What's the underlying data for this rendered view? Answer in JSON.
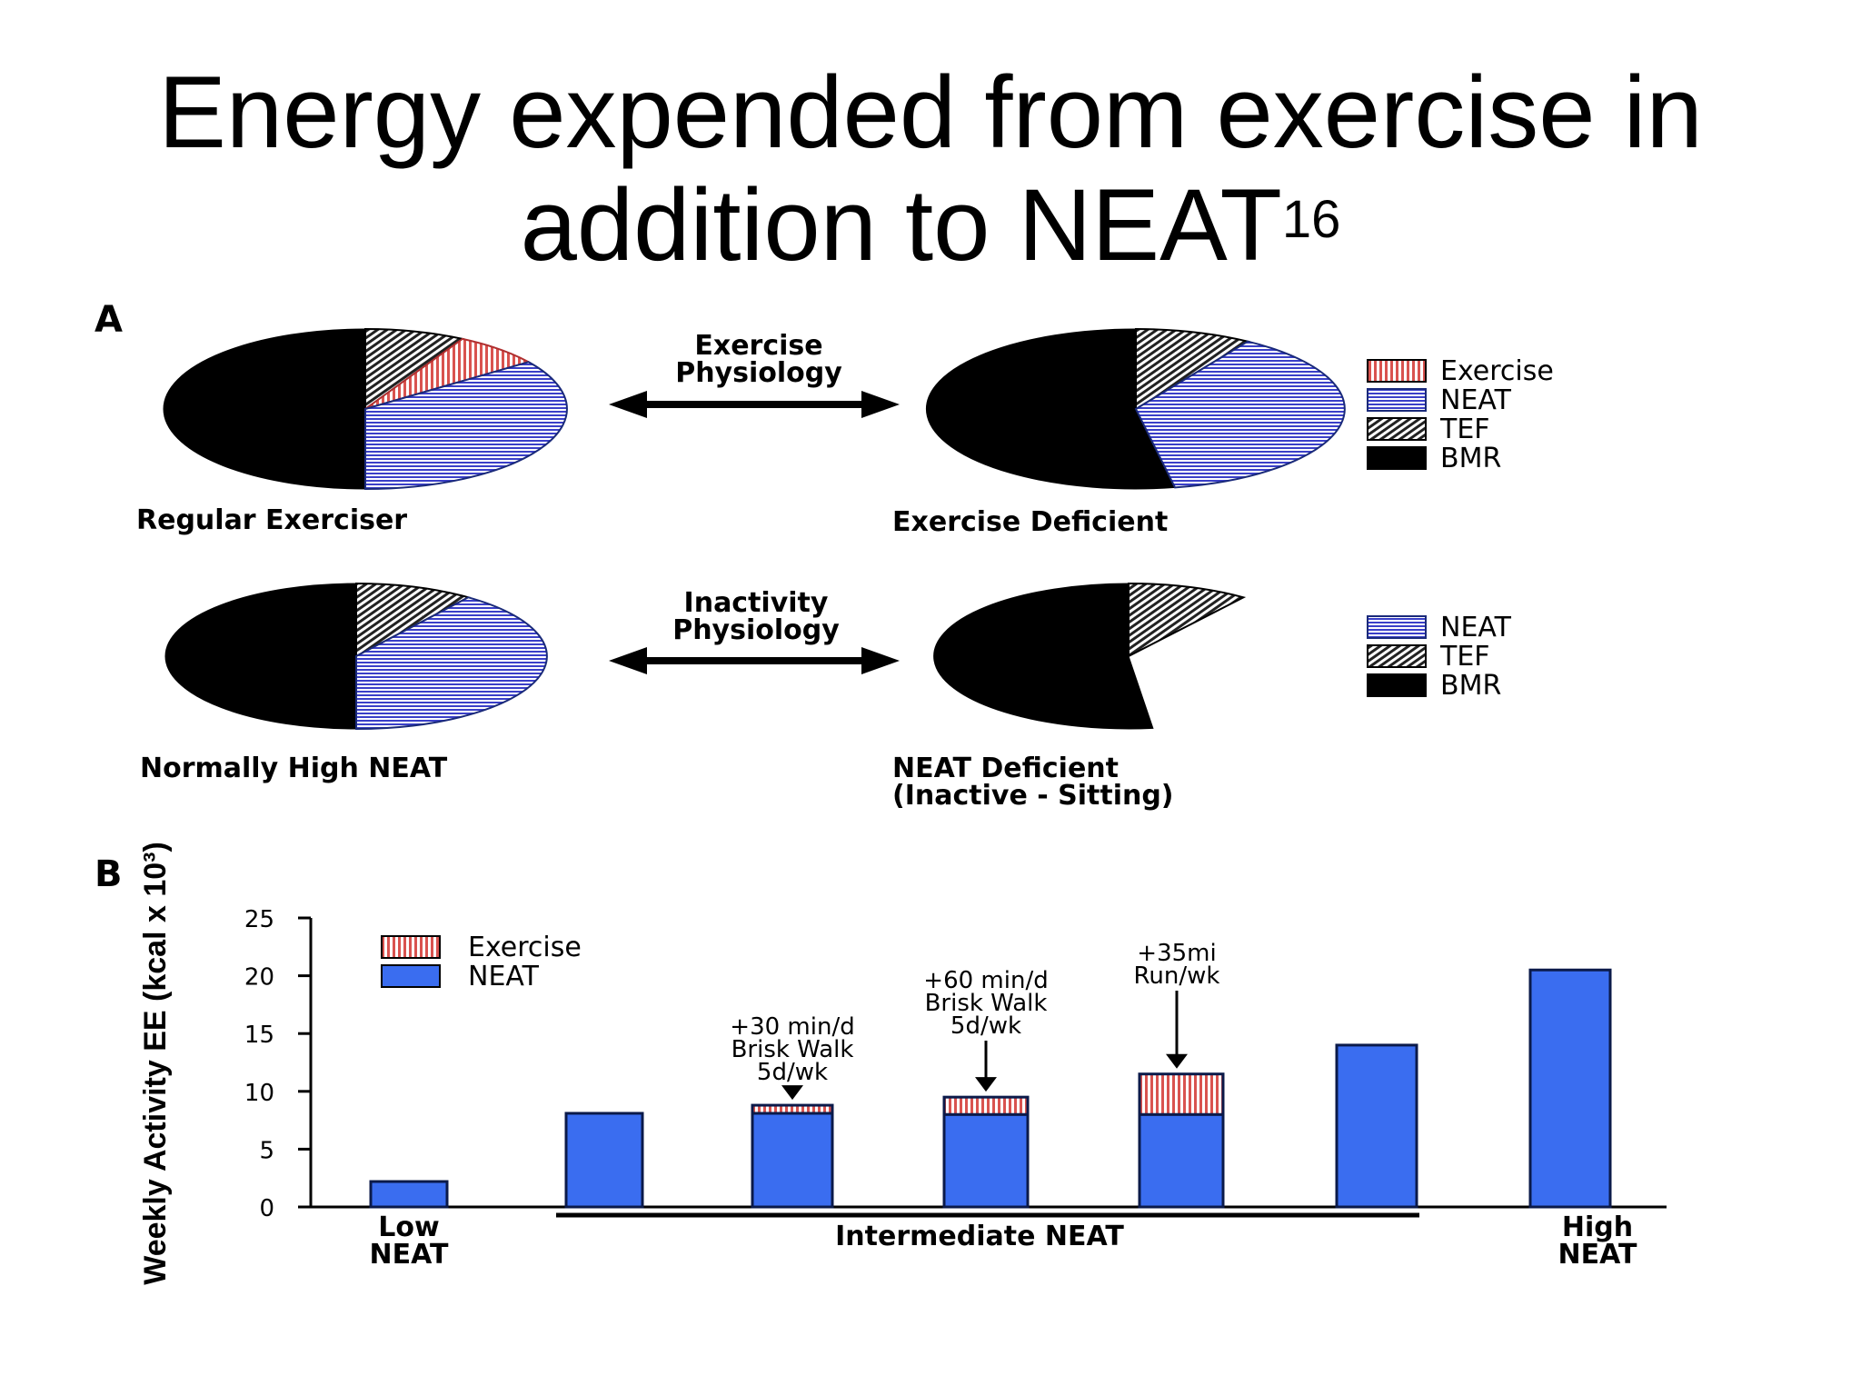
{
  "title": {
    "main": "Energy expended from exercise in addition to NEAT",
    "superscript": "16"
  },
  "colors": {
    "exercise_red": "#d9534f",
    "neat_blue": "#3a6df0",
    "neat_blue_border": "#1a2a7a",
    "tef_gray": "#222222",
    "bmr_black": "#000000"
  },
  "panel_a": {
    "letter": "A",
    "top_arrow_label": [
      "Exercise",
      "Physiology"
    ],
    "bottom_arrow_label": [
      "Inactivity",
      "Physiology"
    ],
    "legend_top": [
      "Exercise",
      "NEAT",
      "TEF",
      "BMR"
    ],
    "legend_bottom": [
      "NEAT",
      "TEF",
      "BMR"
    ],
    "pies": [
      {
        "caption": [
          "Regular Exerciser"
        ],
        "slices": [
          {
            "component": "BMR",
            "percent": 50
          },
          {
            "component": "TEF",
            "percent": 8
          },
          {
            "component": "Exercise",
            "percent": 7
          },
          {
            "component": "NEAT",
            "percent": 35
          }
        ]
      },
      {
        "caption": [
          "Exercise Deficient"
        ],
        "slices": [
          {
            "component": "BMR",
            "percent": 53
          },
          {
            "component": "TEF",
            "percent": 9
          },
          {
            "component": "Exercise",
            "percent": 0
          },
          {
            "component": "NEAT",
            "percent": 38
          }
        ]
      },
      {
        "caption": [
          "Normally High NEAT"
        ],
        "slices": [
          {
            "component": "BMR",
            "percent": 50
          },
          {
            "component": "TEF",
            "percent": 10
          },
          {
            "component": "NEAT",
            "percent": 40
          }
        ]
      },
      {
        "caption": [
          "NEAT Deficient",
          "(Inactive - Sitting)"
        ],
        "slices": [
          {
            "component": "BMR",
            "percent": 52
          },
          {
            "component": "TEF",
            "percent": 10
          },
          {
            "component": "NEAT",
            "percent": 0
          }
        ]
      }
    ]
  },
  "panel_b": {
    "letter": "B",
    "legend": [
      "Exercise",
      "NEAT"
    ],
    "annotations": [
      {
        "bar_index": 2,
        "lines": [
          "+30 min/d",
          "Brisk Walk",
          "5d/wk"
        ]
      },
      {
        "bar_index": 3,
        "lines": [
          "+60 min/d",
          "Brisk Walk",
          "5d/wk"
        ]
      },
      {
        "bar_index": 4,
        "lines": [
          "+35mi",
          "Run/wk"
        ]
      }
    ],
    "x_groups": [
      {
        "lines": [
          "Low",
          "NEAT"
        ],
        "bar_indices": [
          0
        ]
      },
      {
        "lines": [
          "Intermediate NEAT"
        ],
        "bar_indices": [
          1,
          2,
          3,
          4,
          5
        ],
        "underline": true
      },
      {
        "lines": [
          "High",
          "NEAT"
        ],
        "bar_indices": [
          6
        ]
      }
    ]
  },
  "chart_data": [
    {
      "type": "pie",
      "title": "Regular Exerciser",
      "labels": [
        "BMR",
        "TEF",
        "Exercise",
        "NEAT"
      ],
      "values": [
        50,
        8,
        7,
        35
      ]
    },
    {
      "type": "pie",
      "title": "Exercise Deficient",
      "labels": [
        "BMR",
        "TEF",
        "NEAT"
      ],
      "values": [
        53,
        9,
        38
      ]
    },
    {
      "type": "pie",
      "title": "Normally High NEAT",
      "labels": [
        "BMR",
        "TEF",
        "NEAT"
      ],
      "values": [
        50,
        10,
        40
      ]
    },
    {
      "type": "pie",
      "title": "NEAT Deficient (Inactive - Sitting)",
      "labels": [
        "BMR",
        "TEF"
      ],
      "values": [
        52,
        10
      ]
    },
    {
      "type": "bar",
      "stacked": true,
      "ylabel": "Weekly Activity EE (kcal x 10³)",
      "ylim": [
        0,
        25
      ],
      "yticks": [
        0,
        5,
        10,
        15,
        20,
        25
      ],
      "grid": false,
      "legend_placement": "top-left",
      "series": [
        {
          "name": "NEAT",
          "values": [
            2.2,
            8.1,
            8.1,
            8.0,
            8.0,
            14.0,
            20.5
          ]
        },
        {
          "name": "Exercise",
          "values": [
            0,
            0,
            0.7,
            1.5,
            3.5,
            0,
            0
          ]
        }
      ]
    }
  ]
}
